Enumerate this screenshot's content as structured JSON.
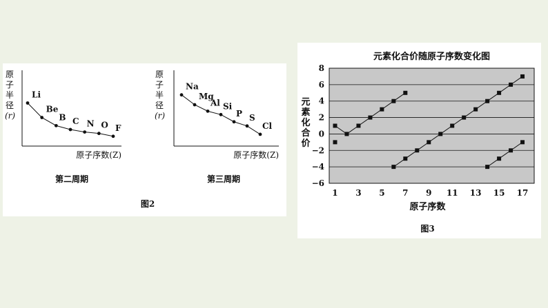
{
  "figure2": {
    "caption": "图2",
    "charts": [
      {
        "caption": "第二周期",
        "ylabel": [
          "原",
          "子",
          "半",
          "径"
        ],
        "ylabel_unit": "(r)",
        "xlabel": "原子序数(Z)"
      },
      {
        "caption": "第三周期",
        "ylabel": [
          "原",
          "子",
          "半",
          "径"
        ],
        "ylabel_unit": "(r)",
        "xlabel": "原子序数(Z)"
      }
    ]
  },
  "figure3": {
    "caption": "图3"
  },
  "chart_data": [
    {
      "type": "line",
      "title": "",
      "caption": "第二周期",
      "xlabel": "原子序数(Z)",
      "ylabel": "原子半径(r)",
      "categories": [
        "Li",
        "Be",
        "B",
        "C",
        "N",
        "O",
        "F"
      ],
      "values": [
        152,
        111,
        88,
        77,
        70,
        66,
        58
      ],
      "grid": false
    },
    {
      "type": "line",
      "title": "",
      "caption": "第三周期",
      "xlabel": "原子序数(Z)",
      "ylabel": "原子半径(r)",
      "categories": [
        "Na",
        "Mg",
        "Al",
        "Si",
        "P",
        "S",
        "Cl"
      ],
      "values": [
        186,
        160,
        143,
        134,
        115,
        104,
        82
      ],
      "grid": false
    },
    {
      "type": "line",
      "title": "元素化合价随原子序数变化图",
      "xlabel": "原子序数",
      "ylabel": "元素化合价",
      "xlim": [
        0.5,
        18
      ],
      "ylim": [
        -6,
        8
      ],
      "xticks": [
        1,
        3,
        5,
        7,
        9,
        11,
        13,
        15,
        17
      ],
      "yticks": [
        -6,
        -4,
        -2,
        0,
        2,
        4,
        6,
        8
      ],
      "grid": true,
      "background": "#c8c8c8",
      "series": [
        {
          "x": [
            1,
            2,
            3,
            4,
            5,
            6,
            7
          ],
          "y": [
            1,
            0,
            1,
            2,
            3,
            4,
            5
          ]
        },
        {
          "x": [
            1
          ],
          "y": [
            -1
          ]
        },
        {
          "x": [
            6,
            7,
            8,
            9,
            10,
            11,
            12,
            13,
            14,
            15,
            16,
            17
          ],
          "y": [
            -4,
            -3,
            -2,
            -1,
            0,
            1,
            2,
            3,
            4,
            5,
            6,
            7
          ]
        },
        {
          "x": [
            14,
            15,
            16,
            17
          ],
          "y": [
            -4,
            -3,
            -2,
            -1
          ]
        }
      ]
    }
  ]
}
